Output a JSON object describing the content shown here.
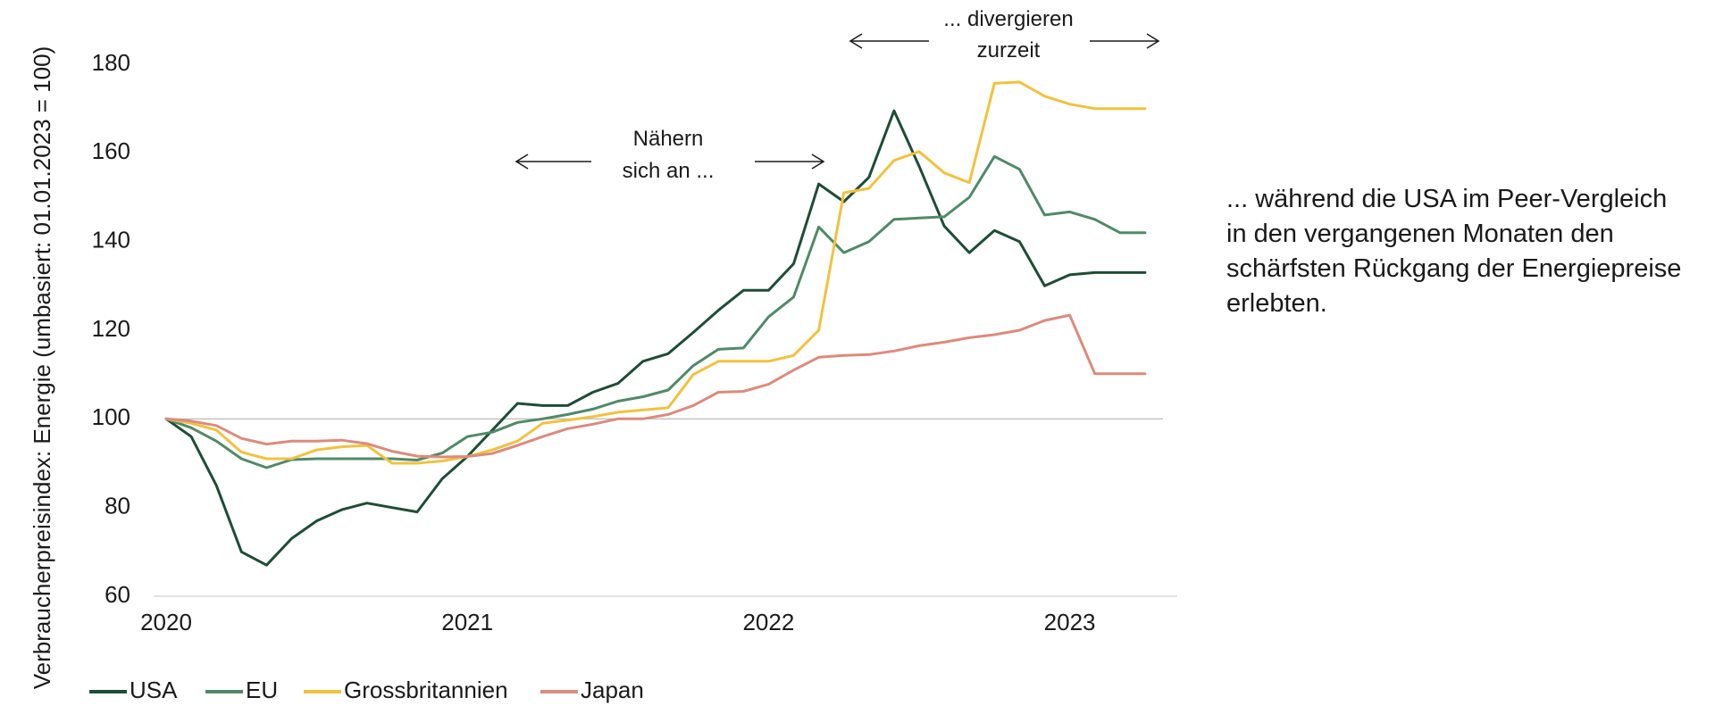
{
  "chart_data": {
    "type": "line",
    "ylabel": "Verbraucherpreisindex: Energie (umbasiert: 01.01.2023 = 100)",
    "ylim": [
      60,
      180
    ],
    "yticks": [
      60,
      80,
      100,
      120,
      140,
      160,
      180
    ],
    "xlim": [
      "2020-01",
      "2023-04"
    ],
    "xticks": [
      "2020",
      "2021",
      "2022",
      "2023"
    ],
    "reference_line": 100,
    "grid": false,
    "legend_position": "bottom-left",
    "x": [
      "2020-01",
      "2020-02",
      "2020-03",
      "2020-04",
      "2020-05",
      "2020-06",
      "2020-07",
      "2020-08",
      "2020-09",
      "2020-10",
      "2020-11",
      "2020-12",
      "2021-01",
      "2021-02",
      "2021-03",
      "2021-04",
      "2021-05",
      "2021-06",
      "2021-07",
      "2021-08",
      "2021-09",
      "2021-10",
      "2021-11",
      "2021-12",
      "2022-01",
      "2022-02",
      "2022-03",
      "2022-04",
      "2022-05",
      "2022-06",
      "2022-07",
      "2022-08",
      "2022-09",
      "2022-10",
      "2022-11",
      "2022-12",
      "2023-01",
      "2023-02",
      "2023-03",
      "2023-04"
    ],
    "series": [
      {
        "name": "USA",
        "color": "#1e4d36",
        "values": [
          100,
          96,
          85,
          70,
          67,
          73,
          77,
          79.5,
          81,
          80,
          79,
          86.5,
          91.5,
          97.5,
          103.5,
          103,
          103,
          106,
          108,
          113,
          114.7,
          119.5,
          124.5,
          129,
          129,
          135,
          153,
          149,
          154.5,
          169.5,
          157,
          143.5,
          137.5,
          142.5,
          140,
          130,
          132.5,
          133,
          133,
          133
        ]
      },
      {
        "name": "EU",
        "color": "#4f8a68",
        "values": [
          100,
          98,
          95,
          91,
          89,
          90.8,
          91,
          91,
          91,
          91,
          90.7,
          92.3,
          96,
          97,
          99.2,
          100,
          101,
          102.2,
          104,
          105,
          106.5,
          112,
          115.7,
          116,
          123,
          127.5,
          143.3,
          137.5,
          140,
          145,
          145.3,
          145.6,
          150,
          159.2,
          156.3,
          146,
          146.7,
          145,
          142,
          142
        ]
      },
      {
        "name": "Grossbritannien",
        "color": "#f2c23e",
        "values": [
          100,
          99,
          97.5,
          92.5,
          91,
          91,
          93,
          93.7,
          94,
          90,
          90,
          90.5,
          91.5,
          93,
          95,
          99,
          99.7,
          100.5,
          101.5,
          102,
          102.5,
          110,
          113,
          113,
          113,
          114.3,
          120,
          151,
          152,
          158.3,
          160.3,
          155.5,
          153.3,
          175.7,
          176,
          172.8,
          171,
          170,
          170,
          170
        ]
      },
      {
        "name": "Japan",
        "color": "#dc8b7d",
        "values": [
          100,
          99.5,
          98.5,
          95.6,
          94.3,
          95,
          95,
          95.2,
          94.4,
          92.7,
          91.6,
          91.4,
          91.5,
          92.2,
          94,
          96,
          97.8,
          98.8,
          100,
          100,
          101,
          103,
          106,
          106.2,
          107.8,
          111,
          113.9,
          114.3,
          114.5,
          115.3,
          116.5,
          117.3,
          118.3,
          119,
          120,
          122.2,
          123.4,
          110.2,
          110.2,
          110.2
        ]
      }
    ],
    "annotations": [
      {
        "id": "converge",
        "lines": [
          "Nähern",
          "sich an ..."
        ]
      },
      {
        "id": "diverge",
        "lines": [
          "... divergieren",
          "zurzeit"
        ]
      }
    ]
  },
  "side_note": {
    "text": "... während die USA im Peer-Vergleich\nin den vergangenen Monaten den\nschärfsten Rückgang der Energiepreise\nerlebten."
  }
}
